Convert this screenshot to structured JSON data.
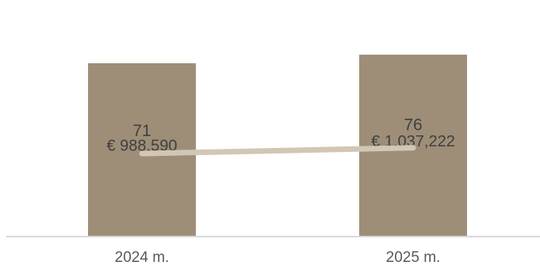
{
  "colors": {
    "bar": "#9E8E78",
    "line": "#D2C6B4",
    "axis": "#D9D9D9",
    "text": "#595959"
  },
  "chart_data": {
    "type": "bar",
    "categories": [
      "2024 m.",
      "2025 m."
    ],
    "series": [
      {
        "type": "bar",
        "values": [
          988590,
          1037222
        ],
        "value_labels": [
          "€ 988,590",
          "€ 1,037,222"
        ]
      },
      {
        "type": "line",
        "values": [
          71,
          76
        ],
        "value_labels": [
          "71",
          "76"
        ]
      }
    ],
    "ylim": [
      0,
      1200000
    ],
    "line_ylim": [
      0,
      180
    ],
    "grid": false,
    "legend": "none"
  }
}
